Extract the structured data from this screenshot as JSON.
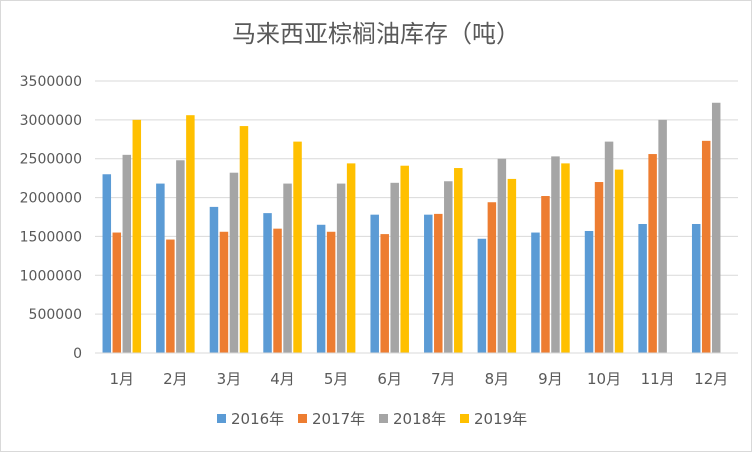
{
  "chart_data": {
    "type": "bar",
    "title": "马来西亚棕榈油库存（吨）",
    "xlabel": "",
    "ylabel": "",
    "categories": [
      "1月",
      "2月",
      "3月",
      "4月",
      "5月",
      "6月",
      "7月",
      "8月",
      "9月",
      "10月",
      "11月",
      "12月"
    ],
    "ylim": [
      0,
      3500000
    ],
    "yticks": [
      "0",
      "500000",
      "1000000",
      "1500000",
      "2000000",
      "2500000",
      "3000000",
      "3500000"
    ],
    "grid": true,
    "legend_position": "bottom",
    "series": [
      {
        "name": "2016年",
        "color": "#5b9bd5",
        "values": [
          2300000,
          2180000,
          1880000,
          1800000,
          1650000,
          1780000,
          1780000,
          1470000,
          1550000,
          1570000,
          1660000,
          1660000
        ]
      },
      {
        "name": "2017年",
        "color": "#ed7d31",
        "values": [
          1550000,
          1460000,
          1560000,
          1600000,
          1560000,
          1530000,
          1790000,
          1940000,
          2020000,
          2200000,
          2560000,
          2730000
        ]
      },
      {
        "name": "2018年",
        "color": "#a5a5a5",
        "values": [
          2550000,
          2480000,
          2320000,
          2180000,
          2180000,
          2190000,
          2210000,
          2500000,
          2530000,
          2720000,
          3000000,
          3220000
        ]
      },
      {
        "name": "2019年",
        "color": "#ffc000",
        "values": [
          3000000,
          3060000,
          2920000,
          2720000,
          2440000,
          2410000,
          2380000,
          2240000,
          2440000,
          2360000,
          null,
          null
        ]
      }
    ]
  }
}
